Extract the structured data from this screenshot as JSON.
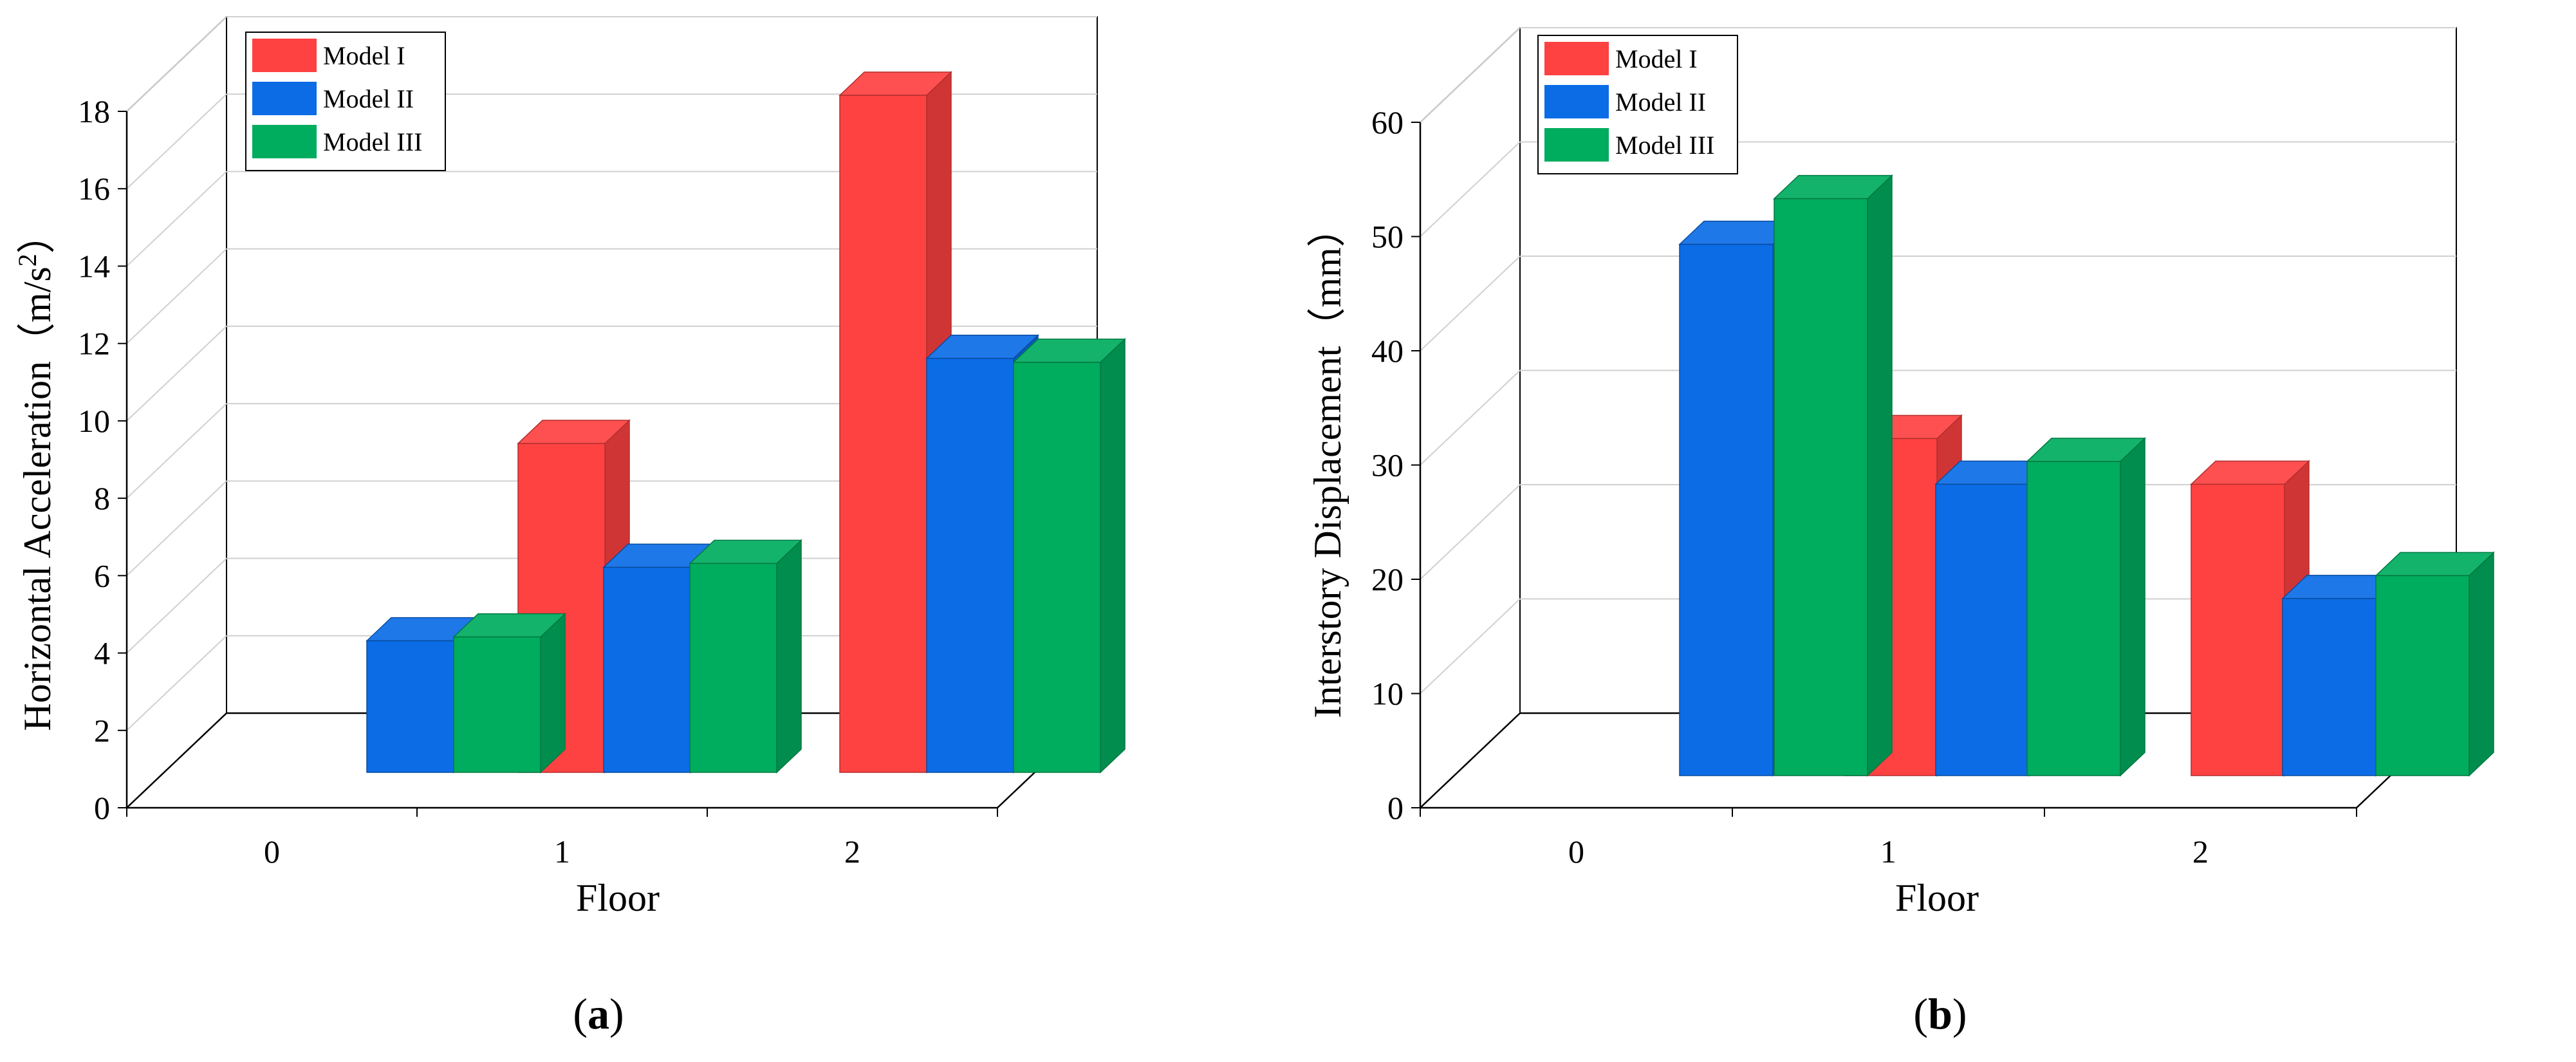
{
  "colors": {
    "Model I": "#fe4141",
    "Model II": "#0b6ce6",
    "Model III": "#00ac5e",
    "grid": "#d0d0d0",
    "axis": "#000000"
  },
  "chart_data": [
    {
      "id": "a",
      "type": "bar",
      "subtype": "3d-grouped",
      "caption": "a",
      "xlabel": "Floor",
      "ylabel": "Horizontal Acceleration（m/s²）",
      "ylabel_parts": {
        "main": "Horizontal Acceleration（m/s",
        "sup": "2",
        "end": "）"
      },
      "categories": [
        "0",
        "1",
        "2"
      ],
      "ylim": [
        0,
        18
      ],
      "yticks": [
        0,
        2,
        4,
        6,
        8,
        10,
        12,
        14,
        16,
        18
      ],
      "grid": true,
      "legend_position": "top-left",
      "series": [
        {
          "name": "Model I",
          "values": [
            null,
            8.5,
            17.5
          ]
        },
        {
          "name": "Model II",
          "values": [
            3.4,
            5.3,
            10.7
          ]
        },
        {
          "name": "Model III",
          "values": [
            3.5,
            5.4,
            10.6
          ]
        }
      ]
    },
    {
      "id": "b",
      "type": "bar",
      "subtype": "3d-grouped",
      "caption": "b",
      "xlabel": "Floor",
      "ylabel": "Interstory Displacement（mm）",
      "categories": [
        "0",
        "1",
        "2"
      ],
      "ylim": [
        0,
        60
      ],
      "yticks": [
        0,
        10,
        20,
        30,
        40,
        50,
        60
      ],
      "grid": true,
      "legend_position": "top-left",
      "series": [
        {
          "name": "Model I",
          "values": [
            null,
            29.5,
            25.5
          ]
        },
        {
          "name": "Model II",
          "values": [
            46.5,
            25.5,
            15.5
          ]
        },
        {
          "name": "Model III",
          "values": [
            50.5,
            27.5,
            17.5
          ]
        }
      ]
    }
  ]
}
